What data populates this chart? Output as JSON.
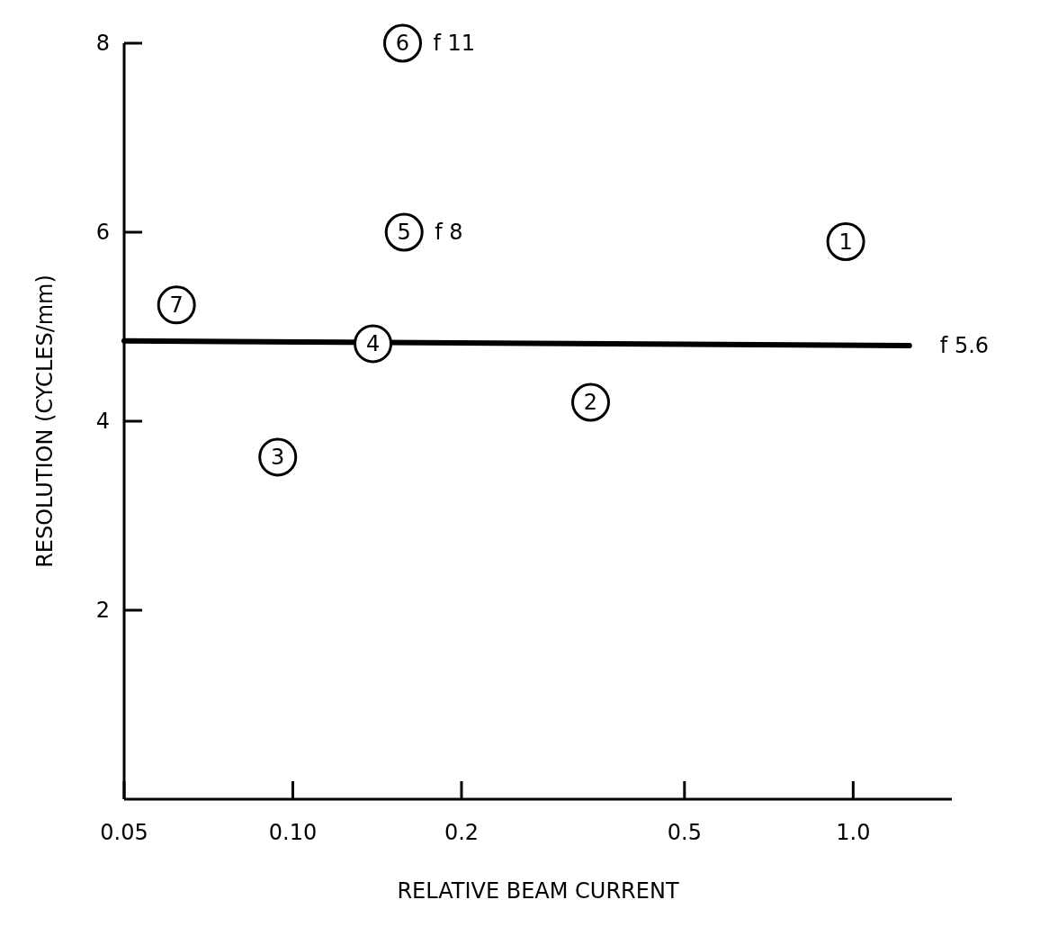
{
  "chart_data": {
    "type": "scatter",
    "xlabel": "RELATIVE BEAM CURRENT",
    "ylabel": "RESOLUTION (CYCLES/mm)",
    "log": "x",
    "xlim": [
      0.05,
      1.5
    ],
    "ylim": [
      0,
      8
    ],
    "xticks": [
      0.05,
      {
        "value": 0.1,
        "label": "0.10"
      },
      0.2,
      0.5,
      {
        "value": 1,
        "label": "1.0"
      }
    ],
    "yticks": [
      2,
      4,
      6,
      8
    ],
    "marker": "circle",
    "series": [
      {
        "type": "line",
        "marker": "none",
        "color": "#000000",
        "x": [
          0.05,
          1.26
        ],
        "values": [
          4.85,
          4.8
        ]
      },
      {
        "name": "1",
        "color": "#000000",
        "x": [
          0.97
        ],
        "values": [
          5.9
        ]
      },
      {
        "name": "2",
        "color": "#000000",
        "x": [
          0.34
        ],
        "values": [
          4.2
        ]
      },
      {
        "name": "3",
        "color": "#000000",
        "x": [
          0.094
        ],
        "values": [
          3.62
        ]
      },
      {
        "name": "4",
        "color": "#000000",
        "x": [
          0.139
        ],
        "values": [
          4.82
        ]
      },
      {
        "name": "5",
        "color": "#000000",
        "x": [
          0.158
        ],
        "values": [
          6.0
        ]
      },
      {
        "name": "6",
        "color": "#000000",
        "x": [
          0.157
        ],
        "values": [
          8.0
        ]
      },
      {
        "name": "7",
        "color": "#000000",
        "x": [
          0.062
        ],
        "values": [
          5.23
        ]
      }
    ],
    "annotations": [
      {
        "text": "f 11",
        "x": 0.157,
        "y": 8.0
      },
      {
        "text": "f 8",
        "x": 0.158,
        "y": 6.0
      },
      {
        "text": "f 5.6",
        "x": 1.26,
        "y": 4.8
      }
    ]
  }
}
